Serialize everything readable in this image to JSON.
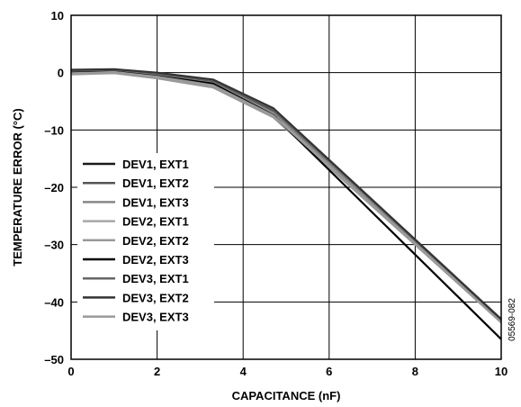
{
  "chart_data": {
    "type": "line",
    "xlabel": "CAPACITANCE (nF)",
    "ylabel": "TEMPERATURE ERROR (°C)",
    "xlim": [
      0,
      10
    ],
    "ylim": [
      -50,
      10
    ],
    "x_ticks": [
      "0",
      "2",
      "4",
      "6",
      "8",
      "10"
    ],
    "y_ticks": [
      "10",
      "0",
      "–10",
      "–20",
      "–30",
      "–40",
      "–50"
    ],
    "grid": true,
    "legend_position": "bottom-left",
    "figure_id": "05569-082",
    "series": [
      {
        "name": "DEV1, EXT1",
        "color": "#1a1a1a",
        "x": [
          0,
          1,
          2,
          3.3,
          4.7,
          10
        ],
        "y": [
          0.3,
          0.5,
          -0.2,
          -1.5,
          -6.6,
          -43.0
        ]
      },
      {
        "name": "DEV1, EXT2",
        "color": "#555555",
        "x": [
          0,
          1,
          2,
          3.3,
          4.7,
          10
        ],
        "y": [
          0.2,
          0.4,
          -0.3,
          -1.6,
          -6.8,
          -43.2
        ]
      },
      {
        "name": "DEV1, EXT3",
        "color": "#888888",
        "x": [
          0,
          1,
          2,
          3.3,
          4.7,
          10
        ],
        "y": [
          0.1,
          0.3,
          -0.5,
          -1.8,
          -7.0,
          -43.3
        ]
      },
      {
        "name": "DEV2, EXT1",
        "color": "#a8a8a8",
        "x": [
          0,
          1,
          2,
          3.3,
          4.7,
          10
        ],
        "y": [
          -0.2,
          0.0,
          -0.9,
          -2.4,
          -7.6,
          -43.4
        ]
      },
      {
        "name": "DEV2, EXT2",
        "color": "#999999",
        "x": [
          0,
          1,
          2,
          3.3,
          4.7,
          10
        ],
        "y": [
          -0.3,
          -0.1,
          -1.0,
          -2.6,
          -7.8,
          -43.5
        ]
      },
      {
        "name": "DEV2, EXT3",
        "color": "#000000",
        "x": [
          0,
          1,
          2,
          3.3,
          4.7,
          10
        ],
        "y": [
          0.0,
          0.2,
          -0.6,
          -1.9,
          -7.4,
          -46.5
        ]
      },
      {
        "name": "DEV3, EXT1",
        "color": "#666666",
        "x": [
          0,
          1,
          2,
          3.3,
          4.7,
          10
        ],
        "y": [
          0.4,
          0.5,
          -0.1,
          -1.3,
          -6.4,
          -43.1
        ]
      },
      {
        "name": "DEV3, EXT2",
        "color": "#333333",
        "x": [
          0,
          1,
          2,
          3.3,
          4.7,
          10
        ],
        "y": [
          0.5,
          0.6,
          0.0,
          -1.2,
          -6.2,
          -43.0
        ]
      },
      {
        "name": "DEV3, EXT3",
        "color": "#9a9a9a",
        "x": [
          0,
          1,
          2,
          3.3,
          4.7,
          10
        ],
        "y": [
          -0.1,
          0.1,
          -0.7,
          -2.2,
          -7.5,
          -43.6
        ]
      }
    ]
  }
}
